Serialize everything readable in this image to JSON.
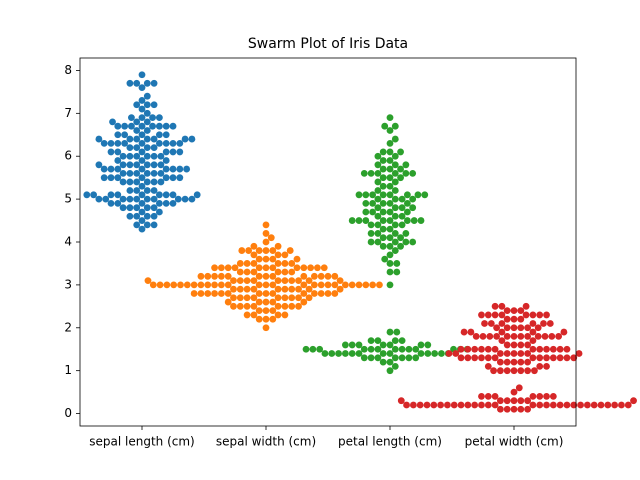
{
  "chart_data": {
    "type": "swarm",
    "title": "Swarm Plot of Iris Data",
    "categories": [
      "sepal length (cm)",
      "sepal width (cm)",
      "petal length (cm)",
      "petal width (cm)"
    ],
    "colors": [
      "#1f77b4",
      "#ff7f0e",
      "#2ca02c",
      "#d62728"
    ],
    "ylim": [
      -0.29,
      8.29
    ],
    "yticks": [
      0,
      1,
      2,
      3,
      4,
      5,
      6,
      7,
      8
    ],
    "values": [
      [
        5.1,
        4.9,
        4.7,
        4.6,
        5.0,
        5.4,
        4.6,
        5.0,
        4.4,
        4.9,
        5.4,
        4.8,
        4.8,
        4.3,
        5.8,
        5.7,
        5.4,
        5.1,
        5.7,
        5.1,
        5.4,
        5.1,
        4.6,
        5.1,
        4.8,
        5.0,
        5.0,
        5.2,
        5.2,
        4.7,
        4.8,
        5.4,
        5.2,
        5.5,
        4.9,
        5.0,
        5.5,
        4.9,
        4.4,
        5.1,
        5.0,
        4.5,
        4.4,
        5.0,
        5.1,
        4.8,
        5.1,
        4.6,
        5.3,
        5.0,
        7.0,
        6.4,
        6.9,
        5.5,
        6.5,
        5.7,
        6.3,
        4.9,
        6.6,
        5.2,
        5.0,
        5.9,
        6.0,
        6.1,
        5.6,
        6.7,
        5.6,
        5.8,
        6.2,
        5.6,
        5.9,
        6.1,
        6.3,
        6.1,
        6.4,
        6.6,
        6.8,
        6.7,
        6.0,
        5.7,
        5.5,
        5.5,
        5.8,
        6.0,
        5.4,
        6.0,
        6.7,
        6.3,
        5.6,
        5.5,
        5.5,
        6.1,
        5.8,
        5.0,
        5.6,
        5.7,
        5.7,
        6.2,
        5.1,
        5.7,
        6.3,
        5.8,
        7.1,
        6.3,
        6.5,
        7.6,
        4.9,
        7.3,
        6.7,
        7.2,
        6.5,
        6.4,
        6.8,
        5.7,
        5.8,
        6.4,
        6.5,
        7.7,
        7.7,
        6.0,
        6.9,
        5.6,
        7.7,
        6.3,
        6.7,
        7.2,
        6.2,
        6.1,
        6.4,
        7.2,
        7.4,
        7.9,
        6.4,
        6.3,
        6.1,
        7.7,
        6.3,
        6.4,
        6.0,
        6.9,
        6.7,
        6.9,
        5.8,
        6.8,
        6.7,
        6.7,
        6.3,
        6.5,
        6.2,
        5.9
      ],
      [
        3.5,
        3.0,
        3.2,
        3.1,
        3.6,
        3.9,
        3.4,
        3.4,
        2.9,
        3.1,
        3.7,
        3.4,
        3.0,
        3.0,
        4.0,
        4.4,
        3.9,
        3.5,
        3.8,
        3.8,
        3.4,
        3.7,
        3.6,
        3.3,
        3.4,
        3.0,
        3.4,
        3.5,
        3.4,
        3.2,
        3.1,
        3.4,
        4.1,
        4.2,
        3.1,
        3.2,
        3.5,
        3.6,
        3.0,
        3.4,
        3.5,
        2.3,
        3.2,
        3.5,
        3.8,
        3.0,
        3.8,
        3.2,
        3.7,
        3.3,
        3.2,
        3.2,
        3.1,
        2.3,
        2.8,
        2.8,
        3.3,
        2.4,
        2.9,
        2.7,
        2.0,
        3.0,
        2.2,
        2.9,
        2.9,
        3.1,
        3.0,
        2.7,
        2.2,
        2.5,
        3.2,
        2.8,
        2.5,
        2.8,
        2.9,
        3.0,
        2.8,
        3.0,
        2.9,
        2.6,
        2.4,
        2.4,
        2.7,
        2.7,
        3.0,
        3.4,
        3.1,
        2.3,
        3.0,
        2.5,
        2.6,
        3.0,
        2.6,
        2.3,
        2.7,
        3.0,
        2.9,
        2.9,
        2.5,
        2.8,
        3.3,
        2.7,
        3.0,
        2.9,
        3.0,
        3.0,
        2.5,
        2.9,
        2.5,
        3.6,
        3.2,
        2.7,
        3.0,
        2.5,
        2.8,
        3.2,
        3.0,
        3.8,
        2.6,
        2.2,
        3.2,
        2.8,
        2.8,
        2.7,
        3.3,
        3.2,
        2.8,
        3.0,
        2.8,
        3.0,
        2.8,
        3.8,
        2.8,
        2.8,
        2.6,
        3.0,
        3.4,
        3.1,
        3.0,
        3.1,
        3.1,
        3.1,
        2.7,
        3.2,
        3.3,
        3.0,
        2.5,
        3.0,
        3.4,
        3.0
      ],
      [
        1.4,
        1.4,
        1.3,
        1.5,
        1.4,
        1.7,
        1.4,
        1.5,
        1.4,
        1.5,
        1.5,
        1.6,
        1.4,
        1.1,
        1.2,
        1.5,
        1.3,
        1.4,
        1.7,
        1.5,
        1.7,
        1.5,
        1.0,
        1.7,
        1.9,
        1.6,
        1.6,
        1.5,
        1.4,
        1.6,
        1.6,
        1.5,
        1.5,
        1.4,
        1.5,
        1.2,
        1.3,
        1.4,
        1.3,
        1.5,
        1.3,
        1.3,
        1.3,
        1.6,
        1.9,
        1.4,
        1.6,
        1.4,
        1.5,
        1.4,
        4.7,
        4.5,
        4.9,
        4.0,
        4.6,
        4.5,
        4.7,
        3.3,
        4.6,
        3.9,
        3.5,
        4.2,
        4.0,
        4.7,
        3.6,
        4.4,
        4.5,
        4.1,
        4.5,
        3.9,
        4.8,
        4.0,
        4.9,
        4.7,
        4.3,
        4.4,
        4.8,
        5.0,
        4.5,
        3.5,
        3.8,
        3.7,
        3.9,
        5.1,
        4.5,
        4.5,
        4.7,
        4.4,
        4.1,
        4.0,
        4.4,
        4.6,
        4.0,
        3.3,
        4.2,
        4.2,
        4.2,
        4.3,
        3.0,
        4.1,
        6.0,
        5.1,
        5.9,
        5.6,
        5.8,
        6.6,
        4.5,
        6.3,
        5.8,
        6.1,
        5.1,
        5.3,
        5.5,
        5.0,
        5.1,
        5.3,
        5.5,
        6.7,
        6.9,
        5.0,
        5.7,
        4.9,
        6.7,
        4.9,
        5.7,
        6.0,
        4.8,
        4.9,
        5.6,
        5.8,
        6.1,
        6.4,
        5.6,
        5.1,
        5.6,
        6.1,
        5.6,
        5.5,
        4.8,
        5.4,
        5.6,
        5.1,
        5.1,
        5.9,
        5.7,
        5.2,
        5.0,
        5.2,
        5.4,
        5.1
      ],
      [
        0.2,
        0.2,
        0.2,
        0.2,
        0.2,
        0.4,
        0.3,
        0.2,
        0.2,
        0.1,
        0.2,
        0.2,
        0.1,
        0.1,
        0.2,
        0.4,
        0.4,
        0.3,
        0.3,
        0.3,
        0.2,
        0.4,
        0.2,
        0.5,
        0.2,
        0.2,
        0.4,
        0.2,
        0.2,
        0.2,
        0.2,
        0.4,
        0.1,
        0.2,
        0.2,
        0.2,
        0.2,
        0.1,
        0.2,
        0.2,
        0.3,
        0.3,
        0.2,
        0.6,
        0.4,
        0.3,
        0.2,
        0.2,
        0.2,
        0.2,
        1.4,
        1.5,
        1.5,
        1.3,
        1.5,
        1.3,
        1.6,
        1.0,
        1.3,
        1.4,
        1.0,
        1.5,
        1.0,
        1.4,
        1.3,
        1.4,
        1.5,
        1.0,
        1.5,
        1.1,
        1.8,
        1.3,
        1.5,
        1.2,
        1.3,
        1.4,
        1.4,
        1.7,
        1.5,
        1.0,
        1.1,
        1.0,
        1.2,
        1.6,
        1.5,
        1.6,
        1.5,
        1.3,
        1.3,
        1.3,
        1.2,
        1.4,
        1.2,
        1.0,
        1.3,
        1.2,
        1.3,
        1.3,
        1.1,
        1.3,
        2.5,
        1.9,
        2.1,
        1.8,
        2.2,
        2.1,
        1.7,
        1.8,
        1.8,
        2.5,
        2.0,
        1.9,
        2.1,
        2.0,
        2.4,
        2.3,
        1.8,
        2.2,
        2.3,
        1.5,
        2.3,
        2.0,
        2.0,
        1.8,
        2.1,
        1.8,
        1.8,
        1.8,
        2.1,
        1.6,
        1.9,
        2.0,
        2.2,
        1.5,
        1.4,
        2.3,
        2.4,
        1.8,
        1.8,
        2.1,
        2.4,
        2.3,
        1.9,
        2.3,
        2.5,
        2.3,
        1.9,
        2.0,
        2.3,
        1.8
      ]
    ]
  }
}
